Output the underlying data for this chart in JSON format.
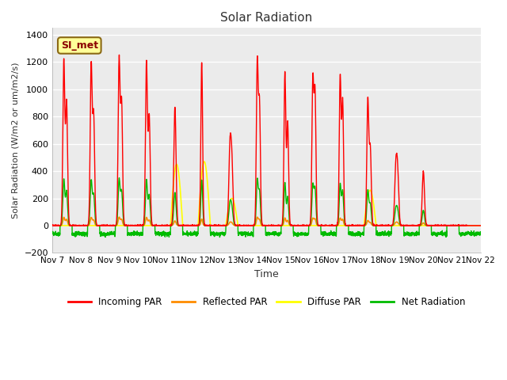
{
  "title": "Solar Radiation",
  "ylabel": "Solar Radiation (W/m2 or um/m2/s)",
  "xlabel": "Time",
  "xlim": [
    0,
    15.5
  ],
  "ylim": [
    -200,
    1450
  ],
  "yticks": [
    -200,
    0,
    200,
    400,
    600,
    800,
    1000,
    1200,
    1400
  ],
  "xtick_labels": [
    "Nov 7",
    "Nov 8",
    "Nov 9",
    "Nov 10",
    "Nov 11",
    "Nov 12",
    "Nov 13",
    "Nov 14",
    "Nov 15",
    "Nov 16",
    "Nov 17",
    "Nov 18",
    "Nov 19",
    "Nov 20",
    "Nov 21",
    "Nov 22"
  ],
  "annotation_text": "SI_met",
  "annotation_color": "#8B0000",
  "annotation_bg": "#FFFF99",
  "annotation_border": "#8B6914",
  "colors": {
    "incoming": "#FF0000",
    "reflected": "#FF8C00",
    "diffuse": "#FFFF00",
    "net": "#00BB00"
  },
  "legend_labels": [
    "Incoming PAR",
    "Reflected PAR",
    "Diffuse PAR",
    "Net Radiation"
  ],
  "bg_color": "#EBEBEB",
  "fig_bg": "#FFFFFF",
  "grid_color": "#FFFFFF"
}
